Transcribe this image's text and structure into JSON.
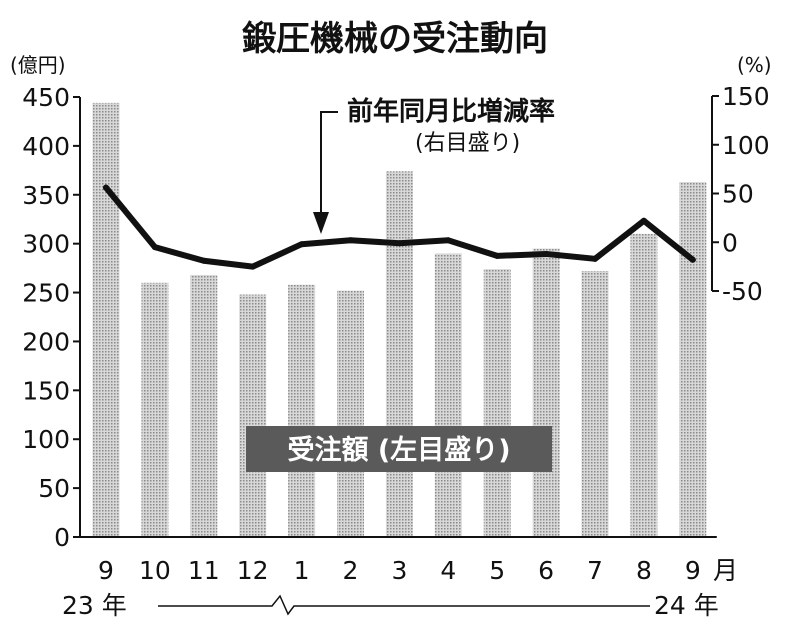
{
  "chart_data": {
    "type": "bar",
    "title": "鍛圧機械の受注動向",
    "categories": [
      "9",
      "10",
      "11",
      "12",
      "1",
      "2",
      "3",
      "4",
      "5",
      "6",
      "7",
      "8",
      "9"
    ],
    "x_unit": "月",
    "year_start": "23 年",
    "year_end": "24 年",
    "y_left_unit": "(億円)",
    "y_right_unit": "(%)",
    "ylim_left": [
      0,
      450
    ],
    "ylim_right": [
      -50,
      150
    ],
    "y_left_ticks": [
      "0",
      "50",
      "100",
      "150",
      "200",
      "250",
      "300",
      "350",
      "400",
      "450"
    ],
    "y_right_ticks": [
      "-50",
      "0",
      "50",
      "100",
      "150"
    ],
    "series": [
      {
        "name": "受注額(左目盛り)",
        "type": "bar",
        "axis": "left",
        "values": [
          444,
          260,
          268,
          248,
          258,
          252,
          374,
          290,
          274,
          295,
          272,
          310,
          363
        ]
      },
      {
        "name": "前年同月比増減率",
        "type": "line",
        "axis": "right",
        "values": [
          56,
          -5,
          -19,
          -25,
          -2,
          2,
          -1,
          2,
          -14,
          -12,
          -17,
          22,
          -18
        ]
      }
    ],
    "annotations": {
      "line_label": "前年同月比増減率",
      "line_label_sub": "(右目盛り)",
      "bar_label": "受注額 (左目盛り)"
    },
    "colors": {
      "bar": "#bdbdbd",
      "line": "#111111",
      "banner": "#5a5a5a"
    }
  }
}
